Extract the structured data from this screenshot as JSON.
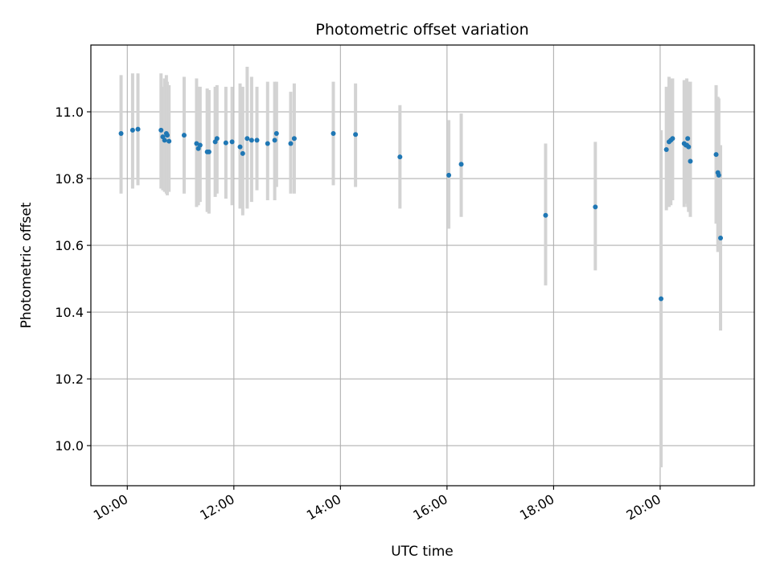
{
  "chart_data": {
    "type": "scatter",
    "title": "Photometric offset variation",
    "xlabel": "UTC time",
    "ylabel": "Photometric offset",
    "x_tick_labels": [
      "10:00",
      "12:00",
      "14:00",
      "16:00",
      "18:00",
      "20:00"
    ],
    "x_ticks": [
      "10:00",
      "12:00",
      "14:00",
      "16:00",
      "18:00",
      "20:00"
    ],
    "y_ticks": [
      10.0,
      10.2,
      10.4,
      10.6,
      10.8,
      11.0
    ],
    "y_tick_labels": [
      "10.0",
      "10.2",
      "10.4",
      "10.6",
      "10.8",
      "11.0"
    ],
    "xlim": [
      "09:19",
      "21:46"
    ],
    "ylim": [
      9.88,
      11.2
    ],
    "grid": true,
    "colors": {
      "points": "#1f77b4",
      "error_bars": "#d3d3d3",
      "grid": "#b0b0b0"
    },
    "series": [
      {
        "x": [
          "09:53",
          "10:06",
          "10:12",
          "10:38",
          "10:40",
          "10:42",
          "10:44",
          "10:45",
          "10:47",
          "11:04",
          "11:18",
          "11:20",
          "11:22",
          "11:30",
          "11:32",
          "11:39",
          "11:41",
          "11:51",
          "11:58",
          "12:07",
          "12:10",
          "12:15",
          "12:20",
          "12:26",
          "12:38",
          "12:46",
          "12:48",
          "13:04",
          "13:08",
          "13:52",
          "14:17",
          "15:07",
          "16:02",
          "16:16",
          "17:51",
          "18:47",
          "20:01",
          "20:07",
          "20:10",
          "20:12",
          "20:14",
          "20:27",
          "20:29",
          "20:30",
          "20:31",
          "20:32",
          "20:34",
          "21:03",
          "21:05",
          "21:06",
          "21:08"
        ],
        "y": [
          10.935,
          10.945,
          10.948,
          10.945,
          10.925,
          10.915,
          10.935,
          10.93,
          10.912,
          10.93,
          10.905,
          10.89,
          10.9,
          10.88,
          10.88,
          10.91,
          10.92,
          10.907,
          10.91,
          10.895,
          10.875,
          10.92,
          10.915,
          10.915,
          10.905,
          10.915,
          10.935,
          10.905,
          10.92,
          10.935,
          10.932,
          10.865,
          10.81,
          10.843,
          10.69,
          10.715,
          10.44,
          10.887,
          10.91,
          10.915,
          10.92,
          10.905,
          10.9,
          10.9,
          10.92,
          10.895,
          10.852,
          10.872,
          10.818,
          10.81,
          10.622
        ],
        "yerr_low": [
          10.755,
          10.77,
          10.78,
          10.77,
          10.765,
          10.76,
          10.755,
          10.75,
          10.76,
          10.755,
          10.715,
          10.72,
          10.73,
          10.7,
          10.695,
          10.745,
          10.755,
          10.74,
          10.72,
          10.71,
          10.69,
          10.71,
          10.73,
          10.765,
          10.735,
          10.735,
          10.775,
          10.755,
          10.755,
          10.78,
          10.775,
          10.71,
          10.65,
          10.685,
          10.48,
          10.525,
          9.935,
          10.705,
          10.715,
          10.72,
          10.735,
          10.715,
          10.73,
          10.725,
          10.715,
          10.7,
          10.685,
          10.665,
          10.58,
          10.59,
          10.345
        ],
        "yerr_high": [
          11.11,
          11.115,
          11.115,
          11.115,
          11.075,
          11.1,
          11.11,
          11.09,
          11.08,
          11.105,
          11.1,
          11.075,
          11.075,
          11.07,
          11.065,
          11.075,
          11.08,
          11.075,
          11.075,
          11.085,
          11.075,
          11.135,
          11.105,
          11.075,
          11.09,
          11.09,
          11.09,
          11.06,
          11.085,
          11.09,
          11.085,
          11.02,
          10.975,
          10.995,
          10.905,
          10.91,
          10.945,
          11.075,
          11.105,
          11.1,
          11.1,
          11.095,
          11.095,
          11.1,
          11.075,
          11.09,
          11.09,
          11.08,
          11.045,
          11.04,
          10.9
        ]
      }
    ]
  }
}
